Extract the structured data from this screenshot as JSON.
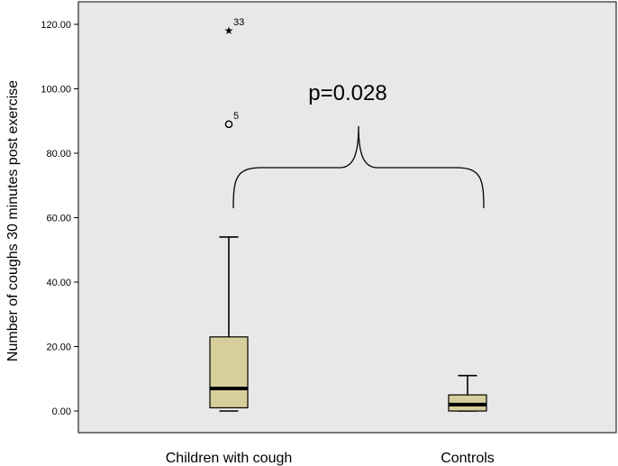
{
  "chart_data": {
    "type": "boxplot",
    "ylabel": "Number of coughs 30 minutes post exercise",
    "ylim": [
      0,
      120
    ],
    "yticks": [
      "0.00",
      "20.00",
      "40.00",
      "60.00",
      "80.00",
      "100.00",
      "120.00"
    ],
    "ytick_values": [
      0,
      20,
      40,
      60,
      80,
      100,
      120
    ],
    "categories": [
      "Children with cough",
      "Controls"
    ],
    "boxes": [
      {
        "category": "Children with cough",
        "min": 0,
        "q1": 1,
        "median": 7,
        "q3": 23,
        "max": 54
      },
      {
        "category": "Controls",
        "min": 0,
        "q1": 0,
        "median": 2,
        "q3": 5,
        "max": 11
      }
    ],
    "outliers": [
      {
        "category": "Children with cough",
        "value": 89,
        "label": "5",
        "marker": "circle"
      },
      {
        "category": "Children with cough",
        "value": 118,
        "label": "33",
        "marker": "star"
      }
    ],
    "annotation": "p=0.028",
    "colors": {
      "plot_background": "#e8e8e8",
      "box_fill": "#d6cf9c",
      "median": "#000000"
    },
    "grid": false,
    "legend": "none"
  }
}
